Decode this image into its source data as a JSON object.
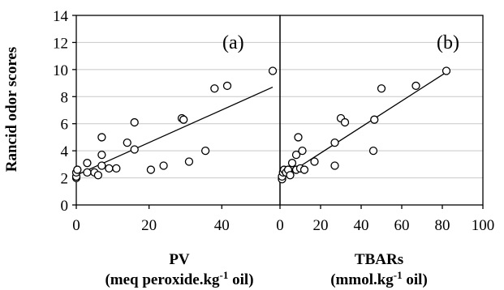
{
  "chart_data": [
    {
      "type": "scatter",
      "panel_label": "(a)",
      "xlabel": "PV",
      "xlabel_unit": {
        "pre": "(meq peroxide.kg",
        "sup": "-1",
        "post": " oil)"
      },
      "ylabel": "Rancid odor scores",
      "xlim": [
        0,
        56
      ],
      "ylim": [
        0,
        14
      ],
      "xticks": [
        "0",
        "20",
        "40"
      ],
      "yticks": [
        "0",
        "2",
        "4",
        "6",
        "8",
        "10",
        "12",
        "14"
      ],
      "grid": "horizontal",
      "points": [
        {
          "x": 0,
          "y": 2.0
        },
        {
          "x": 0,
          "y": 2.1
        },
        {
          "x": 0,
          "y": 2.4
        },
        {
          "x": 0.3,
          "y": 2.6
        },
        {
          "x": 3,
          "y": 2.4
        },
        {
          "x": 3,
          "y": 3.1
        },
        {
          "x": 5,
          "y": 2.4
        },
        {
          "x": 6,
          "y": 2.2
        },
        {
          "x": 7,
          "y": 2.9
        },
        {
          "x": 7,
          "y": 3.7
        },
        {
          "x": 7,
          "y": 5.0
        },
        {
          "x": 9,
          "y": 2.7
        },
        {
          "x": 11,
          "y": 2.7
        },
        {
          "x": 14,
          "y": 4.6
        },
        {
          "x": 16,
          "y": 6.1
        },
        {
          "x": 16,
          "y": 4.1
        },
        {
          "x": 20.5,
          "y": 2.6
        },
        {
          "x": 24,
          "y": 2.9
        },
        {
          "x": 29,
          "y": 6.4
        },
        {
          "x": 29.5,
          "y": 6.3
        },
        {
          "x": 31,
          "y": 3.2
        },
        {
          "x": 35.5,
          "y": 4.0
        },
        {
          "x": 38,
          "y": 8.6
        },
        {
          "x": 41.5,
          "y": 8.8
        },
        {
          "x": 54,
          "y": 9.9
        }
      ],
      "trendline": {
        "x": [
          0,
          54
        ],
        "y": [
          2.2,
          8.7
        ]
      }
    },
    {
      "type": "scatter",
      "panel_label": "(b)",
      "xlabel": "TBARs",
      "xlabel_unit": {
        "pre": "(mmol.kg",
        "sup": "-1",
        "post": " oil)"
      },
      "xlim": [
        0,
        100
      ],
      "ylim": [
        0,
        14
      ],
      "xticks": [
        "0",
        "20",
        "40",
        "60",
        "80",
        "100"
      ],
      "grid": "horizontal",
      "points": [
        {
          "x": 1,
          "y": 1.9
        },
        {
          "x": 1,
          "y": 2.1
        },
        {
          "x": 1.5,
          "y": 2.4
        },
        {
          "x": 2,
          "y": 2.6
        },
        {
          "x": 3,
          "y": 2.4
        },
        {
          "x": 4,
          "y": 2.6
        },
        {
          "x": 5,
          "y": 2.2
        },
        {
          "x": 6,
          "y": 3.1
        },
        {
          "x": 8,
          "y": 2.6
        },
        {
          "x": 8,
          "y": 3.7
        },
        {
          "x": 9,
          "y": 5.0
        },
        {
          "x": 10,
          "y": 2.7
        },
        {
          "x": 11,
          "y": 4.0
        },
        {
          "x": 12,
          "y": 2.6
        },
        {
          "x": 17,
          "y": 3.2
        },
        {
          "x": 27,
          "y": 2.9
        },
        {
          "x": 27,
          "y": 4.6
        },
        {
          "x": 30,
          "y": 6.4
        },
        {
          "x": 32,
          "y": 6.1
        },
        {
          "x": 46,
          "y": 4.0
        },
        {
          "x": 46.5,
          "y": 6.3
        },
        {
          "x": 50,
          "y": 8.6
        },
        {
          "x": 67,
          "y": 8.8
        },
        {
          "x": 82,
          "y": 9.9
        }
      ],
      "trendline": {
        "x": [
          0,
          82
        ],
        "y": [
          1.9,
          9.8
        ]
      }
    }
  ]
}
